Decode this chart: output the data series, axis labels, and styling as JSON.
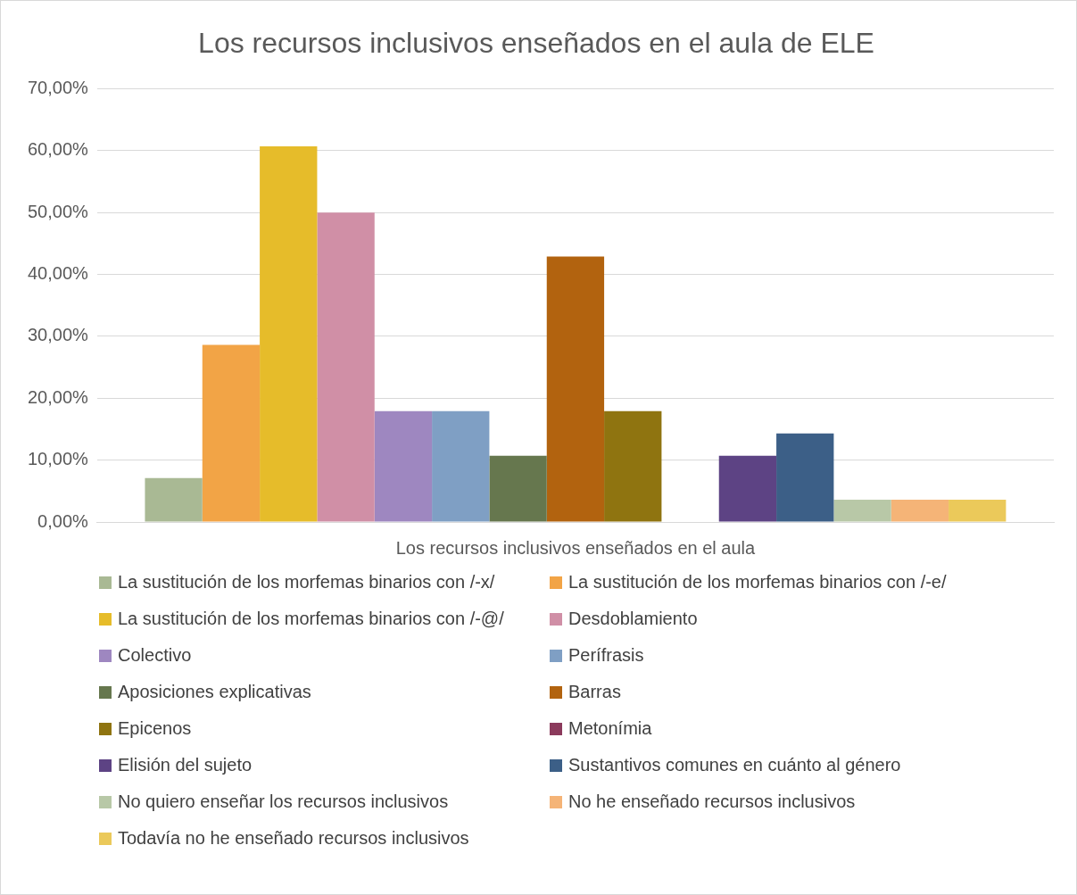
{
  "chart_data": {
    "type": "bar",
    "title": "Los recursos inclusivos enseñados en el aula de ELE",
    "xlabel": "Los recursos inclusivos enseñados en el aula",
    "categories": [
      null
    ],
    "series": [
      {
        "name": "La sustitución de los morfemas binarios con /-x/",
        "color": "#a9b994",
        "values": [
          7.1
        ]
      },
      {
        "name": "La sustitución de los morfemas binarios con /-e/",
        "color": "#f2a446",
        "values": [
          28.6
        ]
      },
      {
        "name": "La sustitución de los morfemas binarios con /-@/",
        "color": "#e6bc2a",
        "values": [
          60.7
        ]
      },
      {
        "name": "Desdoblamiento",
        "color": "#d08fa6",
        "values": [
          50
        ]
      },
      {
        "name": "Colectivo",
        "color": "#9e87c0",
        "values": [
          17.9
        ]
      },
      {
        "name": "Perífrasis",
        "color": "#7f9fc4",
        "values": [
          17.9
        ]
      },
      {
        "name": "Aposiciones explicativas",
        "color": "#66774e",
        "values": [
          10.7
        ]
      },
      {
        "name": "Barras",
        "color": "#b2630f",
        "values": [
          42.9
        ]
      },
      {
        "name": "Epicenos",
        "color": "#8f7410",
        "values": [
          17.9
        ]
      },
      {
        "name": "Metonímia",
        "color": "#8b3a5c",
        "values": [
          0
        ]
      },
      {
        "name": "Elisión del sujeto",
        "color": "#5d4384",
        "values": [
          10.7
        ]
      },
      {
        "name": "Sustantivos comunes en cuánto al género",
        "color": "#3c5f87",
        "values": [
          14.3
        ]
      },
      {
        "name": "No quiero enseñar los recursos inclusivos",
        "color": "#b8c8a7",
        "values": [
          3.6
        ]
      },
      {
        "name": "No he enseñado recursos inclusivos",
        "color": "#f5b477",
        "values": [
          3.6
        ]
      },
      {
        "name": "Todavía no he enseñado recursos inclusivos",
        "color": "#ebc95a",
        "values": [
          3.6
        ]
      }
    ],
    "ylim": [
      0,
      70
    ],
    "yticks": [
      {
        "value": 0,
        "label": "0,00%"
      },
      {
        "value": 10,
        "label": "10,00%"
      },
      {
        "value": 20,
        "label": "20,00%"
      },
      {
        "value": 30,
        "label": "30,00%"
      },
      {
        "value": 40,
        "label": "40,00%"
      },
      {
        "value": 50,
        "label": "50,00%"
      },
      {
        "value": 60,
        "label": "60,00%"
      },
      {
        "value": 70,
        "label": "70,00%"
      }
    ],
    "grid": "y",
    "legend": "bottom",
    "tick_labels": "y"
  }
}
